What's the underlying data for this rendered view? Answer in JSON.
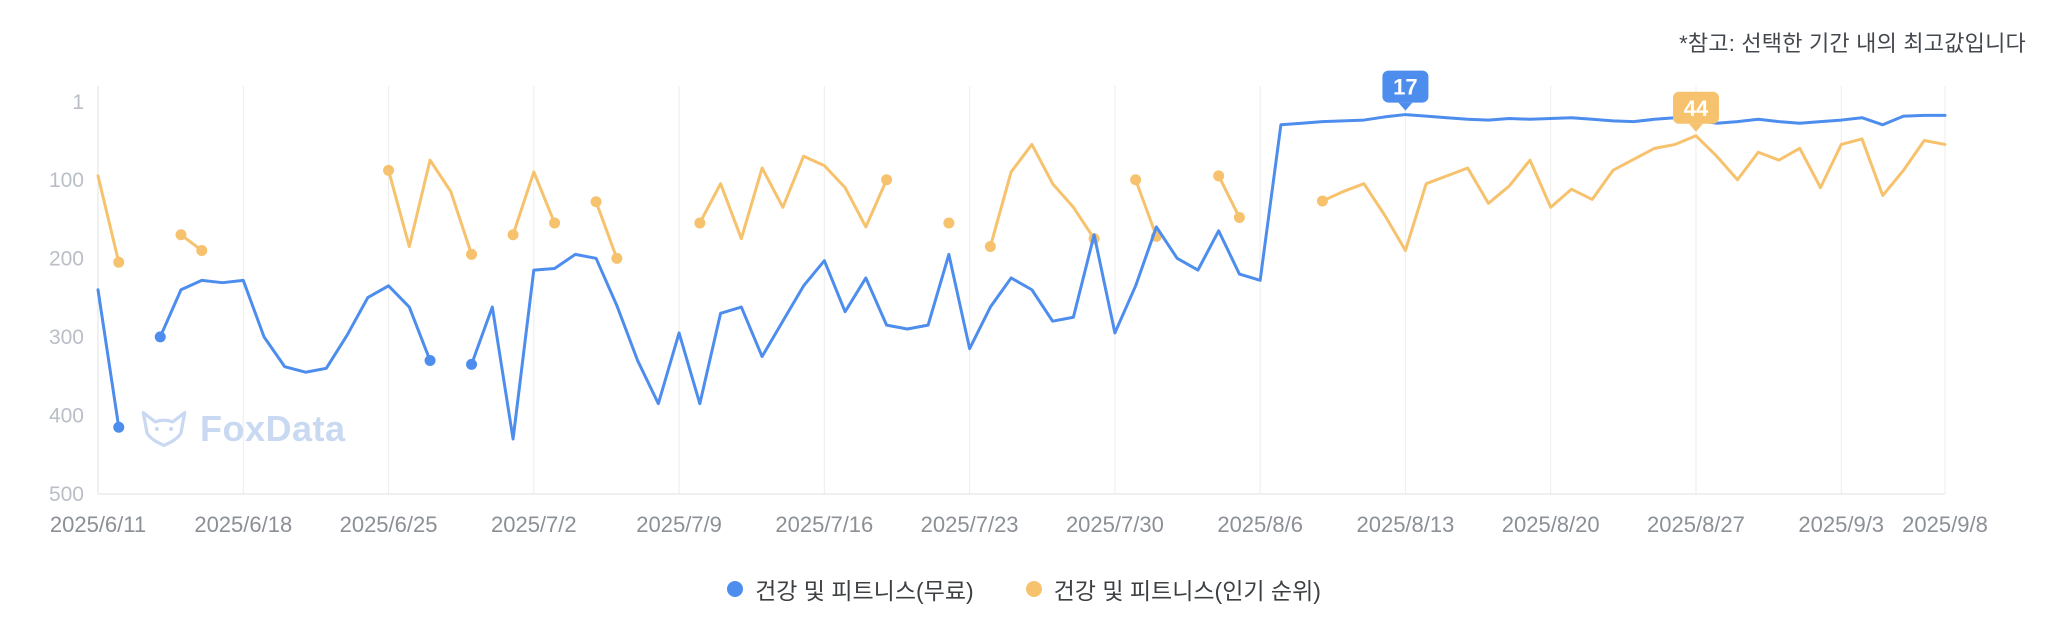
{
  "note": "*참고: 선택한 기간 내의 최고값입니다",
  "watermark": "FoxData",
  "chart_data": {
    "type": "line",
    "title": "",
    "xlabel": "",
    "ylabel": "",
    "legend_position": "bottom",
    "grid": "vertical",
    "y_axis": {
      "min": 1,
      "max": 500,
      "inverted": true,
      "ticks": [
        1,
        100,
        200,
        300,
        400,
        500
      ]
    },
    "point_count": 90,
    "x_ticks": [
      {
        "label": "2025/6/11",
        "index": 0
      },
      {
        "label": "2025/6/18",
        "index": 7
      },
      {
        "label": "2025/6/25",
        "index": 14
      },
      {
        "label": "2025/7/2",
        "index": 21
      },
      {
        "label": "2025/7/9",
        "index": 28
      },
      {
        "label": "2025/7/16",
        "index": 35
      },
      {
        "label": "2025/7/23",
        "index": 42
      },
      {
        "label": "2025/7/30",
        "index": 49
      },
      {
        "label": "2025/8/6",
        "index": 56
      },
      {
        "label": "2025/8/13",
        "index": 63
      },
      {
        "label": "2025/8/20",
        "index": 70
      },
      {
        "label": "2025/8/27",
        "index": 77
      },
      {
        "label": "2025/9/3",
        "index": 84
      },
      {
        "label": "2025/9/8",
        "index": 89
      }
    ],
    "series": [
      {
        "name": "건강 및 피트니스(무료)",
        "color": "#4D8DEE",
        "values": [
          240,
          415,
          null,
          300,
          240,
          228,
          231,
          228,
          300,
          338,
          345,
          340,
          298,
          250,
          235,
          262,
          330,
          null,
          335,
          262,
          430,
          215,
          213,
          195,
          200,
          260,
          330,
          385,
          295,
          385,
          270,
          262,
          325,
          280,
          235,
          203,
          268,
          225,
          285,
          290,
          285,
          195,
          315,
          262,
          225,
          240,
          280,
          275,
          170,
          295,
          235,
          160,
          200,
          215,
          165,
          220,
          228,
          30,
          28,
          26,
          25,
          24,
          20,
          17,
          19,
          21,
          23,
          24,
          22,
          23,
          22,
          21,
          23,
          25,
          26,
          23,
          21,
          24,
          28,
          26,
          23,
          26,
          28,
          26,
          24,
          21,
          30,
          19,
          18,
          18
        ]
      },
      {
        "name": "건강 및 피트니스(인기 순위)",
        "color": "#F7C26D",
        "values": [
          95,
          205,
          null,
          null,
          170,
          190,
          null,
          null,
          null,
          null,
          null,
          null,
          null,
          null,
          88,
          185,
          75,
          115,
          195,
          null,
          170,
          90,
          155,
          null,
          128,
          200,
          null,
          null,
          null,
          155,
          105,
          175,
          85,
          135,
          70,
          82,
          110,
          160,
          100,
          null,
          null,
          155,
          null,
          185,
          90,
          55,
          105,
          135,
          175,
          null,
          100,
          172,
          null,
          null,
          95,
          148,
          null,
          null,
          null,
          127,
          115,
          105,
          145,
          190,
          105,
          95,
          85,
          130,
          108,
          75,
          135,
          112,
          125,
          88,
          74,
          60,
          55,
          44,
          70,
          100,
          65,
          75,
          60,
          110,
          55,
          48,
          120,
          88,
          50,
          55
        ]
      }
    ],
    "annotations": [
      {
        "series": 0,
        "index": 63,
        "label": "17"
      },
      {
        "series": 1,
        "index": 77,
        "label": "44"
      }
    ],
    "colors": {
      "grid": "#ededed",
      "axis": "#e2e2e2",
      "y_tick_text": "#b9bec7",
      "x_tick_text": "#8b9096"
    }
  }
}
